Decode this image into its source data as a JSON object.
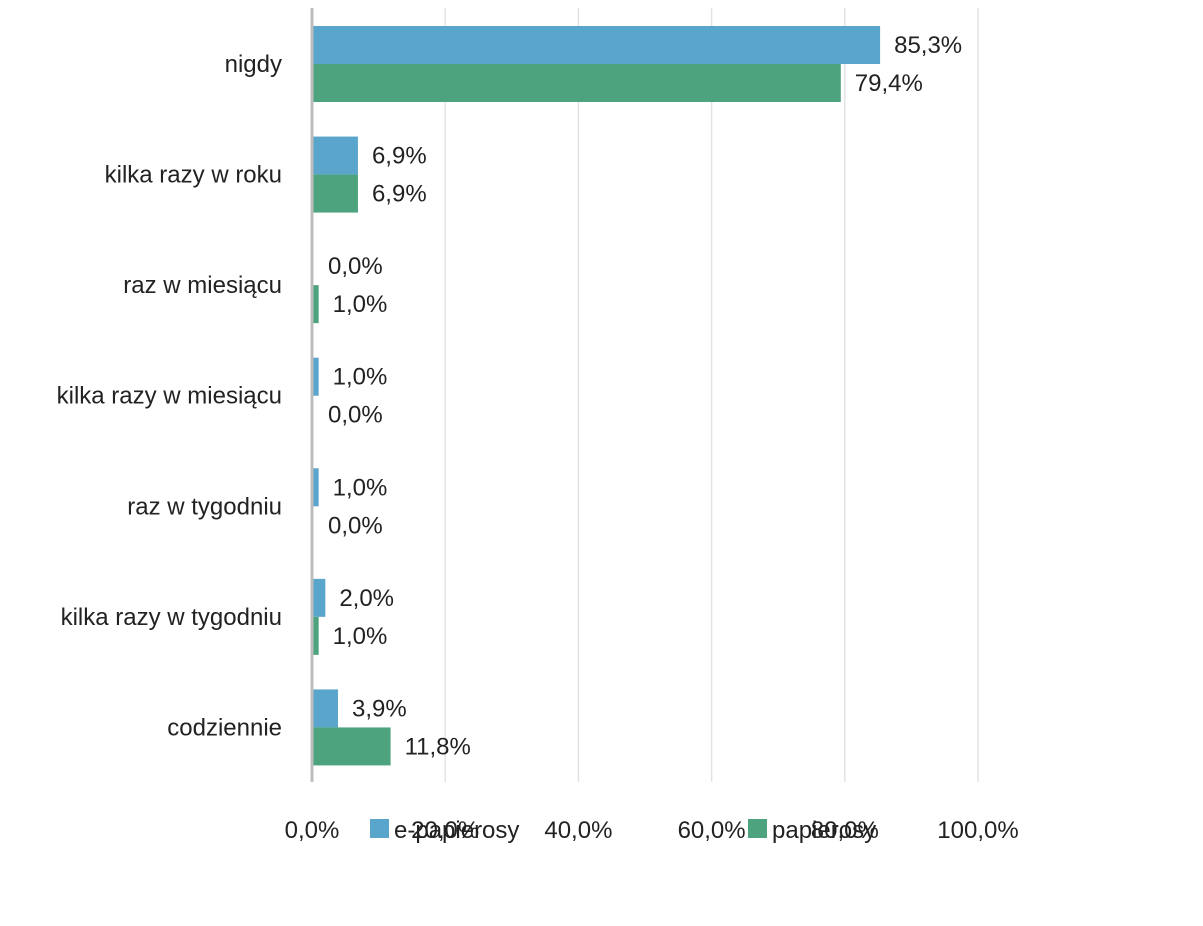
{
  "chart_data": {
    "type": "bar",
    "orientation": "horizontal",
    "categories": [
      "nigdy",
      "kilka razy w roku",
      "raz w miesiącu",
      "kilka razy w miesiącu",
      "raz w tygodniu",
      "kilka razy w tygodniu",
      "codziennie"
    ],
    "series": [
      {
        "name": "e-papierosy",
        "color": "#5aa5cc",
        "values": [
          85.3,
          6.9,
          0.0,
          1.0,
          1.0,
          2.0,
          3.9
        ],
        "labels": [
          "85,3%",
          "6,9%",
          "0,0%",
          "1,0%",
          "1,0%",
          "2,0%",
          "3,9%"
        ]
      },
      {
        "name": "papierosy",
        "color": "#4da37d",
        "values": [
          79.4,
          6.9,
          1.0,
          0.0,
          0.0,
          1.0,
          11.8
        ],
        "labels": [
          "79,4%",
          "6,9%",
          "1,0%",
          "0,0%",
          "0,0%",
          "1,0%",
          "11,8%"
        ]
      }
    ],
    "xlim": [
      0,
      100
    ],
    "xticks": [
      "0,0%",
      "20,0%",
      "40,0%",
      "60,0%",
      "80,0%",
      "100,0%"
    ],
    "grid": true,
    "legend_position": "bottom",
    "title": "",
    "xlabel": "",
    "ylabel": ""
  }
}
